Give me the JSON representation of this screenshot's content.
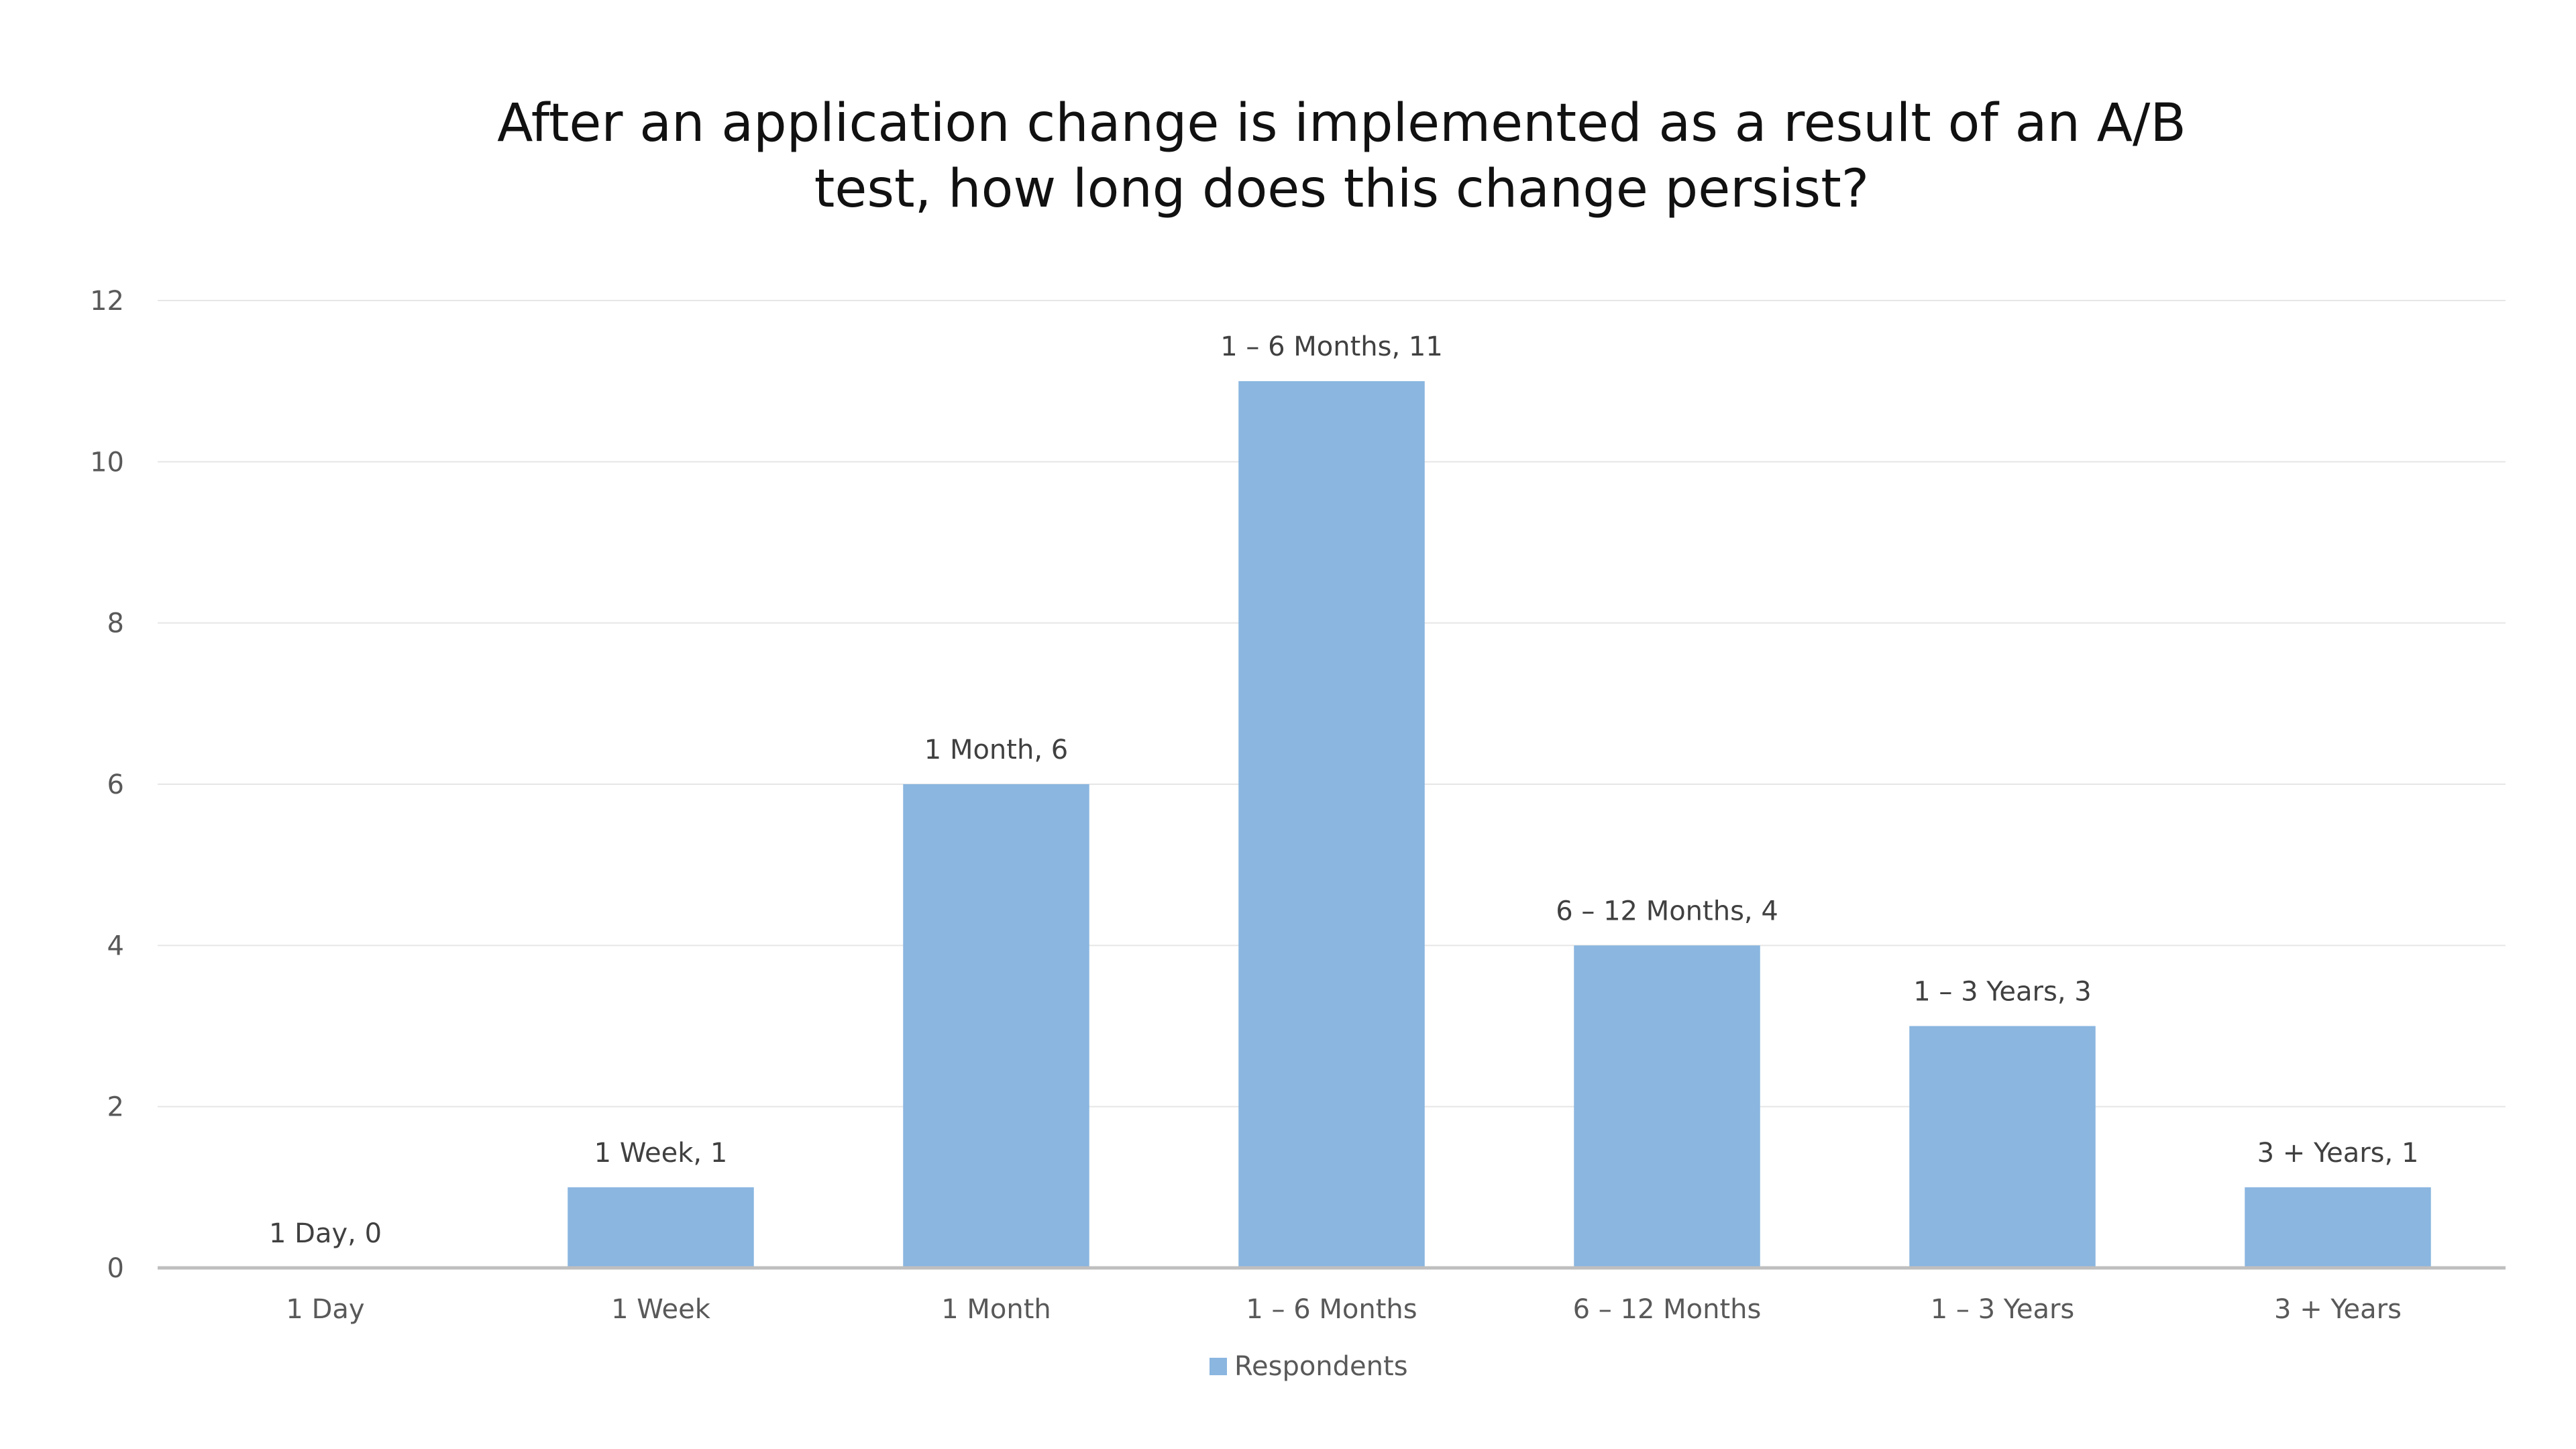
{
  "chart_data": {
    "type": "bar",
    "title": "After an application change is implemented as a result of an A/B test, how long does this change persist?",
    "title_lines": [
      "After an application change is implemented as a result of an A/B",
      "test, how long does this change persist?"
    ],
    "categories": [
      "1 Day",
      "1 Week",
      "1 Month",
      "1 – 6 Months",
      "6 – 12 Months",
      "1 – 3 Years",
      "3 + Years"
    ],
    "series": [
      {
        "name": "Respondents",
        "values": [
          0,
          1,
          6,
          11,
          4,
          3,
          1
        ],
        "color": "#8ab6e0"
      }
    ],
    "data_labels": [
      "1 Day, 0",
      "1 Week, 1",
      "1 Month, 6",
      "1 – 6 Months, 11",
      "6 – 12 Months, 4",
      "1 – 3 Years, 3",
      "3 + Years, 1"
    ],
    "y_ticks": [
      "0",
      "2",
      "4",
      "6",
      "8",
      "10",
      "12"
    ],
    "ylim": [
      0,
      12
    ],
    "xlabel": "",
    "ylabel": "",
    "grid": true,
    "legend": {
      "position": "bottom",
      "label": "Respondents"
    }
  }
}
